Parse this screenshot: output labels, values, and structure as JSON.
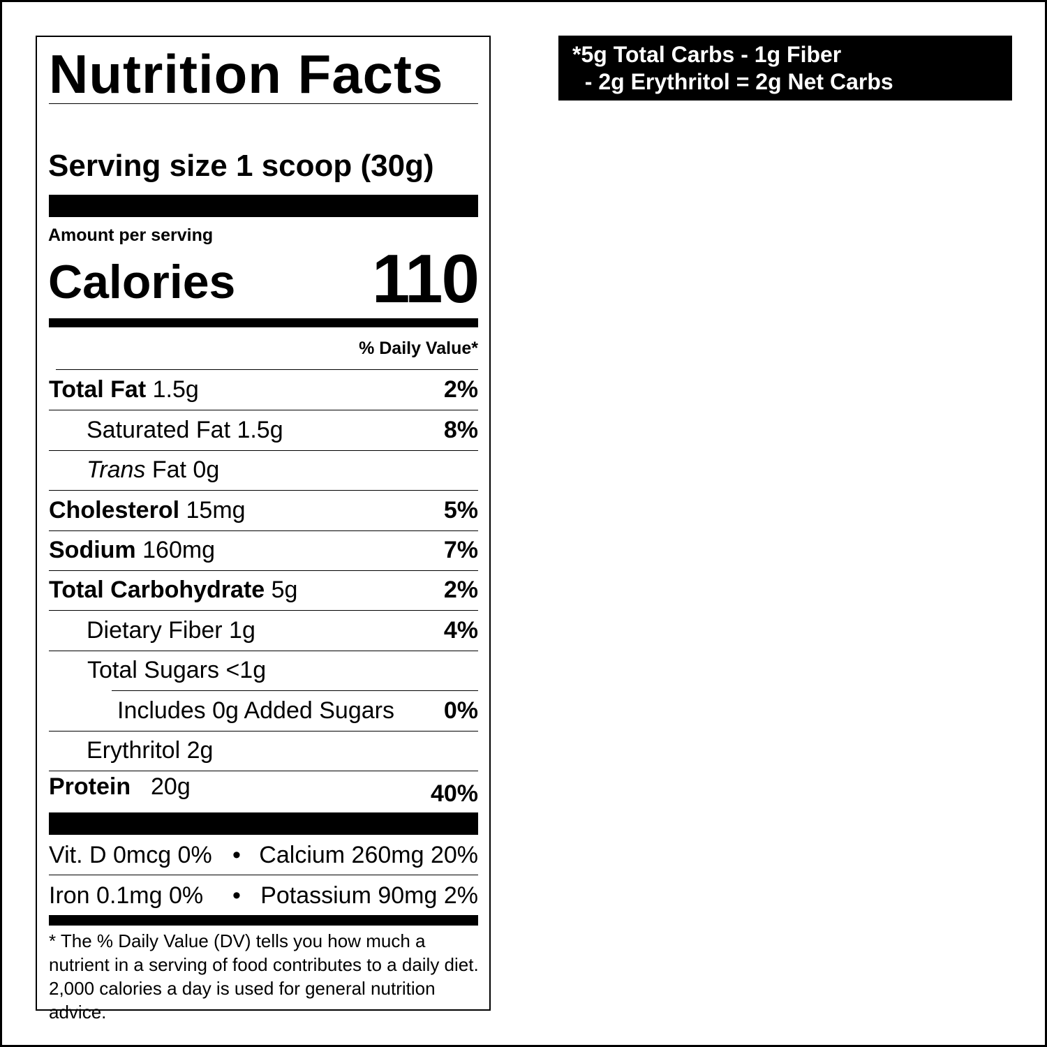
{
  "label": {
    "title": "Nutrition Facts",
    "serving_size": "Serving size 1 scoop (30g)",
    "amount_per_serving": "Amount per serving",
    "calories_label": "Calories",
    "calories_value": "110",
    "daily_value_header": "% Daily Value*",
    "rows": [
      {
        "name": "Total Fat",
        "amount": "1.5g",
        "dv": "2%"
      },
      {
        "name": "Saturated Fat 1.5g",
        "amount": "",
        "dv": "8%"
      },
      {
        "name": "Trans",
        "amount": "Fat 0g",
        "dv": ""
      },
      {
        "name": "Cholesterol",
        "amount": "15mg",
        "dv": "5%"
      },
      {
        "name": "Sodium",
        "amount": "160mg",
        "dv": "7%"
      },
      {
        "name": "Total Carbohydrate",
        "amount": "5g",
        "dv": "2%"
      },
      {
        "name": "Dietary Fiber 1g",
        "amount": "",
        "dv": "4%"
      },
      {
        "name": "Total Sugars <1g",
        "amount": "",
        "dv": ""
      },
      {
        "name": "Includes 0g Added Sugars",
        "amount": "",
        "dv": "0%"
      },
      {
        "name": "Erythritol 2g",
        "amount": "",
        "dv": ""
      },
      {
        "name": "Protein",
        "amount": "20g",
        "dv": "40%"
      }
    ],
    "vitamins": [
      {
        "left": "Vit. D 0mcg 0%",
        "right": "Calcium 260mg 20%"
      },
      {
        "left": "Iron 0.1mg 0%",
        "right": "Potassium 90mg 2%"
      }
    ],
    "separator": "•",
    "footnote": "* The % Daily Value (DV) tells you how much a nutrient in a serving of food contributes to a daily diet. 2,000 calories a day is used for general nutrition advice."
  },
  "net_carbs": {
    "line1": "*5g Total Carbs - 1g Fiber",
    "line2": "  - 2g Erythritol = 2g Net Carbs"
  }
}
